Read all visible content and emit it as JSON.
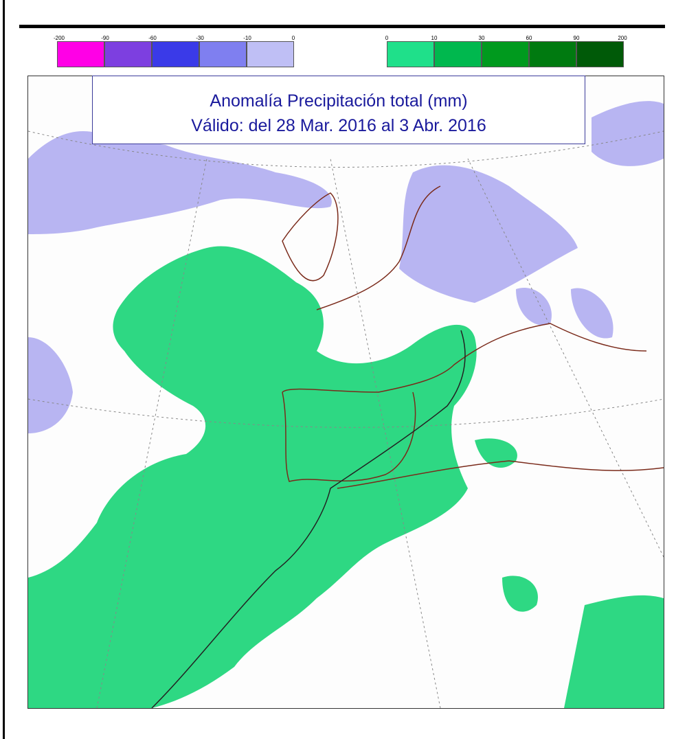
{
  "title": {
    "line1": "Anomalía Precipitación total (mm)",
    "line2": "Válido: del 28 Mar. 2016 al 3 Abr. 2016"
  },
  "legend_negative": {
    "labels": [
      "-200",
      "-90",
      "-60",
      "-30",
      "-10",
      "0"
    ],
    "colors": [
      "#ff00e6",
      "#7d3fe0",
      "#3a3ae8",
      "#7f7ff0",
      "#bfbff5"
    ]
  },
  "legend_positive": {
    "labels": [
      "0",
      "10",
      "30",
      "60",
      "90",
      "200"
    ],
    "colors": [
      "#1fe08a",
      "#00b84e",
      "#009a1e",
      "#007a10",
      "#005a08"
    ]
  },
  "colors": {
    "positive_anomaly": "#2ed883",
    "negative_anomaly": "#b8b5f2",
    "coastline": "#7a2a1a",
    "title": "#1a1a9c"
  }
}
